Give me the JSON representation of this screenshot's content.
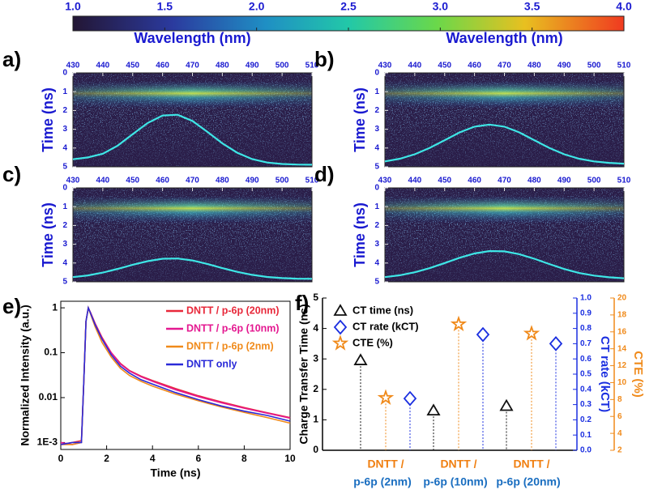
{
  "chart_data": [
    {
      "type": "colorbar",
      "xlim": [
        1,
        4
      ],
      "xticks": [
        {
          "value": 1,
          "label": "1.0"
        },
        1.5,
        {
          "value": 2,
          "label": "2.0"
        },
        2.5,
        {
          "value": 3,
          "label": "3.0"
        },
        3.5,
        {
          "value": 4,
          "label": "4.0"
        }
      ]
    },
    {
      "type": "heatmap",
      "panel_label": "a)",
      "x_label": "Wavelength (nm)",
      "y_label": "Time (ns)",
      "xlim": [
        430,
        510
      ],
      "xticks": [
        430,
        440,
        450,
        460,
        470,
        480,
        490,
        500,
        510
      ],
      "ylim": [
        0,
        5
      ],
      "yticks": [
        0,
        1,
        2,
        3,
        4,
        5
      ],
      "y_inverted": true,
      "series": [
        {
          "color": "#3ee6e6",
          "x": [
            430,
            435,
            440,
            445,
            450,
            455,
            460,
            465,
            470,
            475,
            480,
            485,
            490,
            495,
            500,
            505,
            510
          ],
          "values": [
            4.6,
            4.5,
            4.3,
            3.87,
            3.26,
            2.67,
            2.27,
            2.23,
            2.56,
            3.14,
            3.75,
            4.25,
            4.59,
            4.77,
            4.85,
            4.88,
            4.89
          ]
        }
      ]
    },
    {
      "type": "heatmap",
      "panel_label": "b)",
      "x_label": "Wavelength (nm)",
      "y_label": "Time (ns)",
      "xlim": [
        430,
        510
      ],
      "xticks": [
        430,
        440,
        450,
        460,
        470,
        480,
        490,
        500,
        510
      ],
      "ylim": [
        0,
        5
      ],
      "yticks": [
        0,
        1,
        2,
        3,
        4,
        5
      ],
      "y_inverted": true,
      "series": [
        {
          "color": "#3ee6e6",
          "x": [
            430,
            435,
            440,
            445,
            450,
            455,
            460,
            465,
            470,
            475,
            480,
            485,
            490,
            495,
            500,
            505,
            510
          ],
          "values": [
            4.71,
            4.57,
            4.33,
            3.99,
            3.58,
            3.17,
            2.86,
            2.75,
            2.86,
            3.17,
            3.58,
            3.99,
            4.33,
            4.57,
            4.71,
            4.79,
            4.83
          ]
        }
      ]
    },
    {
      "type": "heatmap",
      "panel_label": "c)",
      "y_label": "Time (ns)",
      "xlim": [
        430,
        510
      ],
      "xticks": [
        430,
        440,
        450,
        460,
        470,
        480,
        490,
        500,
        510
      ],
      "ylim": [
        0,
        5
      ],
      "yticks": [
        0,
        1,
        2,
        3,
        4,
        5
      ],
      "y_inverted": true,
      "series": [
        {
          "color": "#3ee6e6",
          "x": [
            430,
            435,
            440,
            445,
            450,
            455,
            460,
            465,
            470,
            475,
            480,
            485,
            490,
            495,
            500,
            505,
            510
          ],
          "values": [
            4.75,
            4.66,
            4.51,
            4.31,
            4.09,
            3.9,
            3.77,
            3.76,
            3.86,
            4.05,
            4.27,
            4.47,
            4.63,
            4.74,
            4.8,
            4.83,
            4.84
          ]
        }
      ]
    },
    {
      "type": "heatmap",
      "panel_label": "d)",
      "y_label": "Time (ns)",
      "xlim": [
        430,
        510
      ],
      "xticks": [
        430,
        440,
        450,
        460,
        470,
        480,
        490,
        500,
        510
      ],
      "ylim": [
        0,
        5
      ],
      "yticks": [
        0,
        1,
        2,
        3,
        4,
        5
      ],
      "y_inverted": true,
      "series": [
        {
          "color": "#3ee6e6",
          "x": [
            430,
            435,
            440,
            445,
            450,
            455,
            460,
            465,
            470,
            475,
            480,
            485,
            490,
            495,
            500,
            505,
            510
          ],
          "values": [
            4.75,
            4.65,
            4.49,
            4.27,
            4.0,
            3.72,
            3.49,
            3.36,
            3.38,
            3.53,
            3.77,
            4.05,
            4.32,
            4.53,
            4.67,
            4.76,
            4.81
          ]
        }
      ]
    },
    {
      "type": "line",
      "panel_label": "e)",
      "x_label": "Time (ns)",
      "y_label": "Normalized Intensity (a.u.)",
      "xlim": [
        0,
        10
      ],
      "xticks": [
        0,
        2,
        4,
        6,
        8,
        10
      ],
      "ylim": [
        0.0007,
        1.4
      ],
      "yticks": [
        {
          "value": 0.001,
          "label": "1E-3"
        },
        0.01,
        0.1,
        1
      ],
      "log_y": true,
      "x": [
        0,
        0.5,
        0.9,
        1.0,
        1.1,
        1.2,
        1.3,
        1.5,
        1.8,
        2.2,
        2.6,
        3,
        3.5,
        4,
        5,
        6,
        7,
        8,
        9,
        10
      ],
      "series": [
        {
          "name": "DNTT / p-6p (20nm)",
          "color": "#e8283a",
          "values": [
            0.0009,
            0.001,
            0.0011,
            0.02,
            0.5,
            1,
            0.78,
            0.45,
            0.22,
            0.1,
            0.058,
            0.04,
            0.03,
            0.024,
            0.016,
            0.011,
            0.008,
            0.006,
            0.0046,
            0.0036
          ]
        },
        {
          "name": "DNTT / p-6p (10nm)",
          "color": "#e41890",
          "values": [
            0.001,
            0.0009,
            0.001,
            0.02,
            0.5,
            1,
            0.77,
            0.44,
            0.21,
            0.1,
            0.056,
            0.039,
            0.029,
            0.023,
            0.015,
            0.0105,
            0.0077,
            0.0058,
            0.0045,
            0.0035
          ]
        },
        {
          "name": "DNTT / p-6p (2nm)",
          "color": "#f08a1a",
          "values": [
            0.0009,
            0.0009,
            0.001,
            0.02,
            0.5,
            1,
            0.72,
            0.38,
            0.17,
            0.08,
            0.045,
            0.031,
            0.023,
            0.018,
            0.012,
            0.0085,
            0.0062,
            0.0047,
            0.0036,
            0.0027
          ]
        },
        {
          "name": "DNTT  only",
          "color": "#2a2ad8",
          "values": [
            0.0009,
            0.001,
            0.001,
            0.02,
            0.5,
            1,
            0.75,
            0.42,
            0.2,
            0.09,
            0.05,
            0.035,
            0.025,
            0.02,
            0.013,
            0.009,
            0.0065,
            0.005,
            0.004,
            0.003
          ]
        }
      ]
    },
    {
      "type": "lollipop",
      "panel_label": "f)",
      "categories": [
        [
          "DNTT /",
          "p-6p (2nm)"
        ],
        [
          "DNTT /",
          "p-6p (10nm)"
        ],
        [
          "DNTT /",
          "p-6p (20nm)"
        ]
      ],
      "y_label": "Charge Transfer Time (ns)",
      "ylim": [
        0,
        5
      ],
      "yticks": [
        0,
        1,
        2,
        3,
        4,
        5
      ],
      "y2_label": "CT rate (kCT)",
      "y2lim": [
        0,
        1
      ],
      "y2ticks": [
        {
          "value": 0,
          "label": "0.0"
        },
        0.1,
        0.2,
        0.3,
        0.4,
        0.5,
        0.6,
        0.7,
        0.8,
        0.9,
        {
          "value": 1,
          "label": "1.0"
        }
      ],
      "y3_label": "CTE (%)",
      "y3lim": [
        2,
        20
      ],
      "y3ticks": [
        2,
        4,
        6,
        8,
        10,
        12,
        14,
        16,
        18,
        20
      ],
      "series": [
        {
          "name": "CT time (ns)",
          "color": "#111111",
          "marker": "triangle",
          "values": [
            2.95,
            1.3,
            1.45
          ]
        },
        {
          "name": "CT rate (kCT)",
          "color": "#1a2ee0",
          "marker": "diamond",
          "axis": "y2",
          "values": [
            0.34,
            0.76,
            0.7
          ]
        },
        {
          "name": "CTE (%)",
          "color": "#f08a1a",
          "marker": "star",
          "axis": "y3",
          "values": [
            8.2,
            16.9,
            15.8
          ]
        }
      ]
    }
  ]
}
